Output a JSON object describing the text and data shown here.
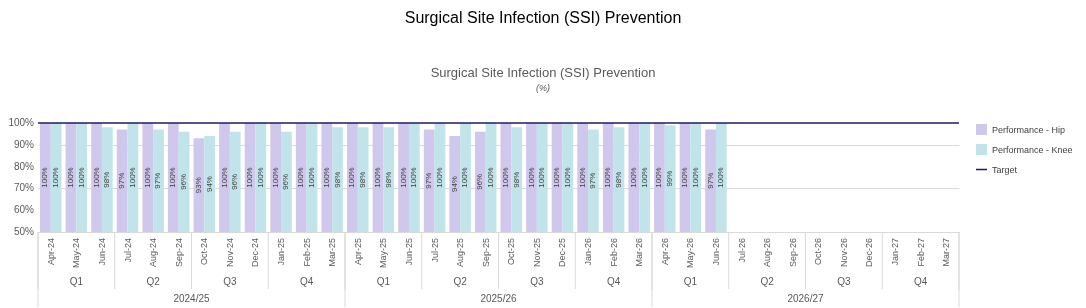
{
  "chart_data": {
    "type": "bar",
    "title": "Surgical Site Infection (SSI) Prevention",
    "subtitle": "(%)",
    "categories": [
      "Apr-24",
      "May-24",
      "Jun-24",
      "Jul-24",
      "Aug-24",
      "Sep-24",
      "Oct-24",
      "Nov-24",
      "Dec-24",
      "Jan-25",
      "Feb-25",
      "Mar-25",
      "Apr-25",
      "May-25",
      "Jun-25",
      "Jul-25",
      "Aug-25",
      "Sep-25",
      "Oct-25",
      "Nov-25",
      "Dec-25",
      "Jan-26",
      "Feb-26",
      "Mar-26",
      "Apr-26",
      "May-26",
      "Jun-26",
      "Jul-26",
      "Aug-26",
      "Sep-26",
      "Oct-26",
      "Nov-26",
      "Dec-26",
      "Jan-27",
      "Feb-27",
      "Mar-27"
    ],
    "series": [
      {
        "name": "Performance - Hip",
        "color": "#cfc7ec",
        "values": [
          100,
          100,
          100,
          97,
          100,
          100,
          93,
          100,
          100,
          100,
          100,
          100,
          100,
          100,
          100,
          97,
          94,
          96,
          100,
          100,
          100,
          100,
          100,
          100,
          100,
          100,
          97,
          null,
          null,
          null,
          null,
          null,
          null,
          null,
          null,
          null
        ],
        "value_labels": [
          "100%",
          "100%",
          "100%",
          "97%",
          "100%",
          "100%",
          "93%",
          "100%",
          "100%",
          "100%",
          "100%",
          "100%",
          "100%",
          "100%",
          "100%",
          "97%",
          "94%",
          "96%",
          "100%",
          "100%",
          "100%",
          "100%",
          "100%",
          "100%",
          "100%",
          "100%",
          "97%",
          null,
          null,
          null,
          null,
          null,
          null,
          null,
          null,
          null
        ]
      },
      {
        "name": "Performance - Knee",
        "color": "#c0e4ea",
        "values": [
          100,
          100,
          98,
          100,
          97,
          96,
          94,
          96,
          100,
          96,
          100,
          98,
          98,
          98,
          100,
          100,
          100,
          100,
          98,
          100,
          100,
          97,
          98,
          100,
          99,
          100,
          100,
          null,
          null,
          null,
          null,
          null,
          null,
          null,
          null,
          null
        ],
        "value_labels": [
          "100%",
          "100%",
          "98%",
          "100%",
          "97%",
          "96%",
          "94%",
          "96%",
          "100%",
          "96%",
          "100%",
          "98%",
          "98%",
          "98%",
          "100%",
          "100%",
          "100%",
          "100%",
          "98%",
          "100%",
          "100%",
          "97%",
          "98%",
          "100%",
          "99%",
          "100%",
          "100%",
          null,
          null,
          null,
          null,
          null,
          null,
          null,
          null,
          null
        ]
      }
    ],
    "ref_lines": [
      {
        "axis": "y",
        "value": 100,
        "label": "Target",
        "color": "#1f1a5e"
      }
    ],
    "ylim": [
      50,
      100
    ],
    "yticks": [
      {
        "value": 50,
        "label": "50%"
      },
      {
        "value": 60,
        "label": "60%"
      },
      {
        "value": 70,
        "label": "70%"
      },
      {
        "value": 80,
        "label": "80%"
      },
      {
        "value": 90,
        "label": "90%"
      },
      {
        "value": 100,
        "label": "100%"
      }
    ],
    "grid": "y",
    "legend": "right",
    "annotations": [
      "Surgical Site Infection (SSI) Prevention",
      "Q1",
      "Q2",
      "Q3",
      "Q4",
      "Q1",
      "Q2",
      "Q3",
      "Q4",
      "Q1",
      "Q2",
      "Q3",
      "Q4",
      "2024/25",
      "2025/26",
      "2026/27"
    ]
  }
}
